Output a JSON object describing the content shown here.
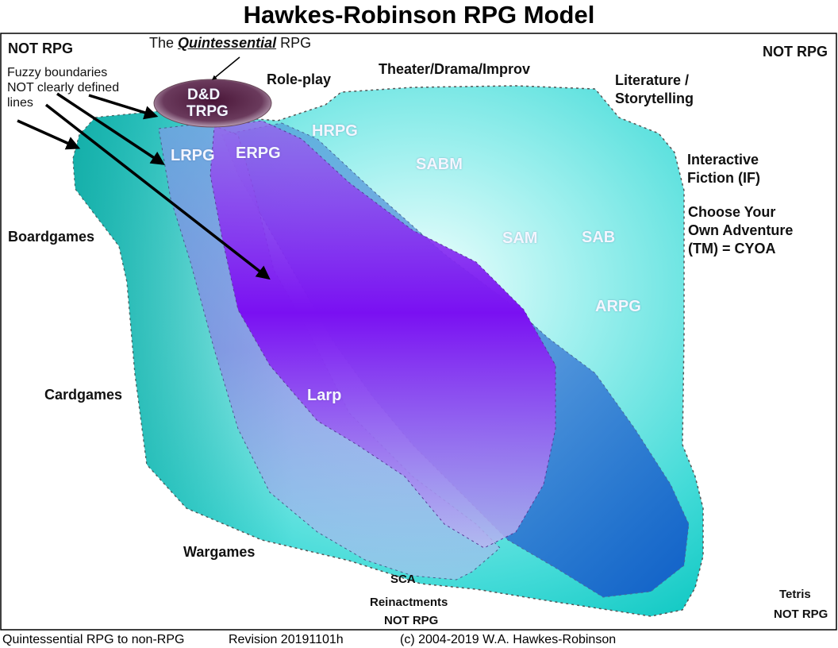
{
  "title": "Hawkes-Robinson RPG Model",
  "corner_labels": {
    "top_left": "NOT RPG",
    "top_right": "NOT RPG",
    "bottom_right_game": "Tetris",
    "bottom_right": "NOT RPG"
  },
  "quintessential": {
    "prefix": "The",
    "emphasis": "Quintessential",
    "suffix": "RPG"
  },
  "center_ellipse": {
    "line1": "D&D",
    "line2": "TRPG"
  },
  "fuzzy_note": {
    "line1": "Fuzzy boundaries",
    "line2": "NOT clearly defined",
    "line3": "lines"
  },
  "outer_labels": {
    "role_play": "Role-play",
    "theater": "Theater/Drama/Improv",
    "literature_line1": "Literature /",
    "literature_line2": "Storytelling",
    "interactive_line1": "Interactive",
    "interactive_line2": "Fiction (IF)",
    "cyoa_line1": "Choose Your",
    "cyoa_line2": "Own Adventure",
    "cyoa_line3": "(TM) = CYOA",
    "boardgames": "Boardgames",
    "cardgames": "Cardgames",
    "wargames": "Wargames",
    "sca": "SCA",
    "reinactments": "Reinactments",
    "not_rpg_bottom": "NOT RPG"
  },
  "inner_labels": {
    "lrpg": "LRPG",
    "erpg": "ERPG",
    "hrpg": "HRPG",
    "sabm": "SABM",
    "sam": "SAM",
    "sab": "SAB",
    "arpg": "ARPG",
    "larp": "Larp"
  },
  "footer": {
    "left": "Quintessential RPG to non-RPG",
    "revision": "Revision 20191101h",
    "copyright": "(c) 2004-2019 W.A. Hawkes-Robinson"
  },
  "colors": {
    "outer_fill": "#44dbd8",
    "outer_edge": "#0fa8a2",
    "purple_core": "#7a10f2",
    "blue_band": "#1f6ed0",
    "ellipse": "#5a2a4a",
    "frame": "#000000"
  }
}
